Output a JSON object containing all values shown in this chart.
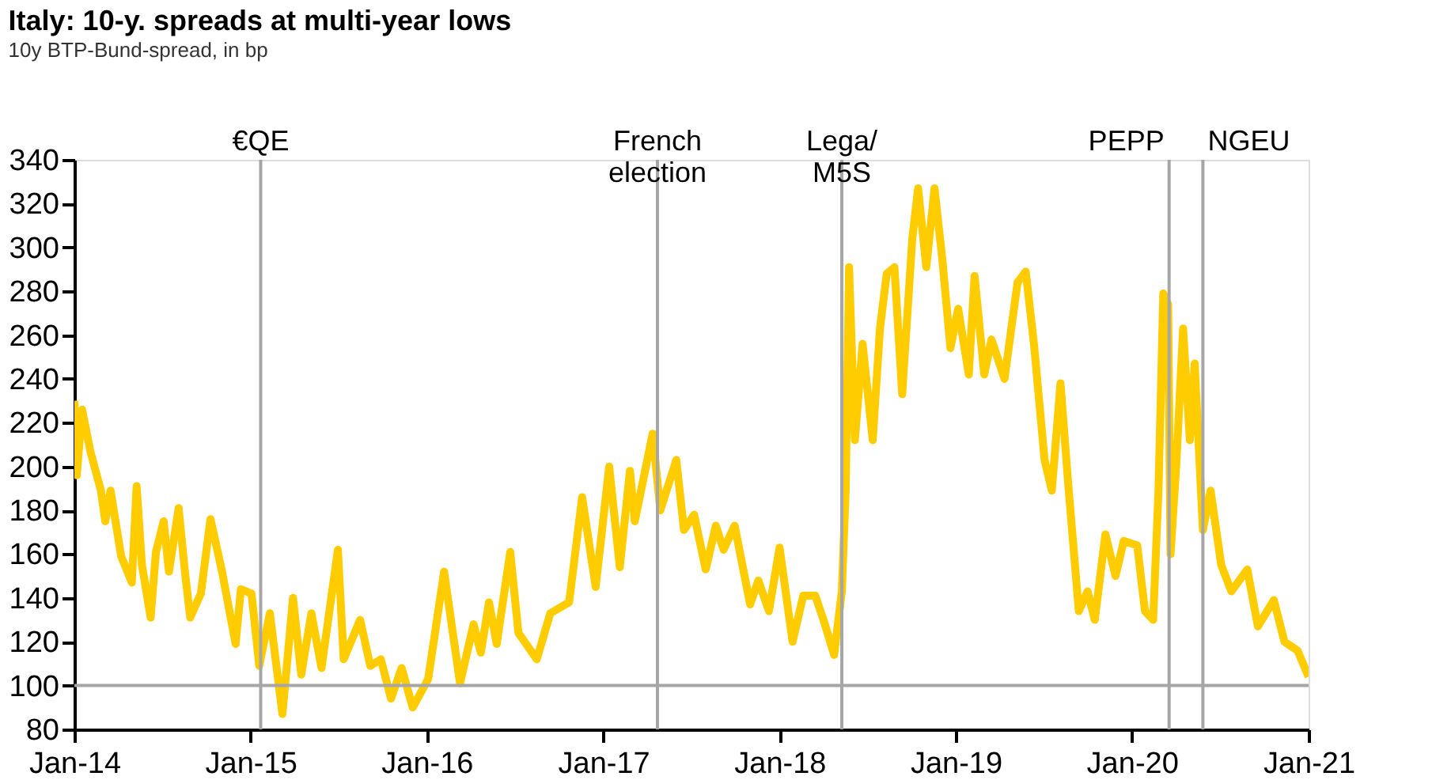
{
  "chart_data": {
    "type": "line",
    "title": "Italy: 10-y. spreads at multi-year lows",
    "subtitle": "10y BTP-Bund-spread, in bp",
    "xlim": [
      "2014-01-01",
      "2021-01-01"
    ],
    "xticks": [
      {
        "value": "2014-01-01",
        "label": "Jan-14"
      },
      {
        "value": "2015-01-01",
        "label": "Jan-15"
      },
      {
        "value": "2016-01-01",
        "label": "Jan-16"
      },
      {
        "value": "2017-01-01",
        "label": "Jan-17"
      },
      {
        "value": "2018-01-01",
        "label": "Jan-18"
      },
      {
        "value": "2019-01-01",
        "label": "Jan-19"
      },
      {
        "value": "2020-01-01",
        "label": "Jan-20"
      },
      {
        "value": "2021-01-01",
        "label": "Jan-21"
      }
    ],
    "ylim": [
      80,
      340
    ],
    "yticks": [
      80,
      100,
      120,
      140,
      160,
      180,
      200,
      220,
      240,
      260,
      280,
      300,
      320,
      340
    ],
    "grid": false,
    "marker": "none",
    "line_style": "solid",
    "x": [
      "2014-01-01",
      "2014-01-06",
      "2014-01-17",
      "2014-02-03",
      "2014-02-25",
      "2014-03-06",
      "2014-03-17",
      "2014-04-08",
      "2014-04-30",
      "2014-05-10",
      "2014-05-21",
      "2014-06-08",
      "2014-06-19",
      "2014-07-05",
      "2014-07-16",
      "2014-08-05",
      "2014-08-18",
      "2014-08-29",
      "2014-09-20",
      "2014-10-10",
      "2014-11-03",
      "2014-12-01",
      "2014-12-12",
      "2015-01-03",
      "2015-01-19",
      "2015-02-10",
      "2015-03-08",
      "2015-03-30",
      "2015-04-16",
      "2015-05-07",
      "2015-05-28",
      "2015-07-01",
      "2015-07-13",
      "2015-08-16",
      "2015-09-06",
      "2015-09-28",
      "2015-10-19",
      "2015-11-10",
      "2015-12-03",
      "2016-01-04",
      "2016-02-06",
      "2016-03-10",
      "2016-04-07",
      "2016-04-22",
      "2016-05-09",
      "2016-05-25",
      "2016-06-22",
      "2016-07-09",
      "2016-08-16",
      "2016-09-13",
      "2016-10-22",
      "2016-11-18",
      "2016-12-16",
      "2017-01-13",
      "2017-02-04",
      "2017-02-25",
      "2017-03-07",
      "2017-04-13",
      "2017-04-29",
      "2017-06-01",
      "2017-06-17",
      "2017-07-08",
      "2017-08-01",
      "2017-08-22",
      "2017-09-07",
      "2017-09-30",
      "2017-11-01",
      "2017-11-18",
      "2017-12-10",
      "2018-01-01",
      "2018-01-28",
      "2018-02-19",
      "2018-03-16",
      "2018-04-02",
      "2018-04-24",
      "2018-05-10",
      "2018-05-18",
      "2018-05-25",
      "2018-06-06",
      "2018-06-22",
      "2018-07-13",
      "2018-07-28",
      "2018-08-11",
      "2018-08-27",
      "2018-09-12",
      "2018-10-03",
      "2018-10-15",
      "2018-11-01",
      "2018-11-18",
      "2018-12-04",
      "2018-12-21",
      "2019-01-06",
      "2019-01-28",
      "2019-02-09",
      "2019-03-01",
      "2019-03-16",
      "2019-04-12",
      "2019-05-09",
      "2019-05-26",
      "2019-06-12",
      "2019-07-04",
      "2019-07-19",
      "2019-08-06",
      "2019-08-22",
      "2019-09-13",
      "2019-10-01",
      "2019-10-16",
      "2019-11-07",
      "2019-11-28",
      "2019-12-15",
      "2020-01-12",
      "2020-01-28",
      "2020-02-14",
      "2020-02-25",
      "2020-03-06",
      "2020-03-16",
      "2020-03-21",
      "2020-04-02",
      "2020-04-16",
      "2020-04-30",
      "2020-05-10",
      "2020-05-27",
      "2020-06-12",
      "2020-07-04",
      "2020-07-25",
      "2020-08-27",
      "2020-09-18",
      "2020-10-21",
      "2020-11-12",
      "2020-12-09",
      "2021-01-01"
    ],
    "series": [
      {
        "color": "#ffcc00",
        "values": [
          230,
          196,
          226,
          207,
          189,
          175,
          189,
          159,
          147,
          191,
          155,
          131,
          161,
          175,
          152,
          181,
          152,
          131,
          142,
          176,
          152,
          119,
          144,
          142,
          109,
          133,
          87,
          140,
          105,
          133,
          108,
          162,
          112,
          130,
          109,
          112,
          94,
          108,
          90,
          103,
          152,
          101,
          128,
          115,
          138,
          119,
          161,
          124,
          112,
          133,
          138,
          186,
          145,
          200,
          154,
          198,
          175,
          215,
          180,
          203,
          171,
          178,
          153,
          173,
          162,
          173,
          137,
          148,
          134,
          163,
          120,
          141,
          141,
          130,
          114,
          143,
          189,
          291,
          212,
          256,
          212,
          263,
          288,
          291,
          233,
          304,
          327,
          291,
          327,
          295,
          254,
          272,
          242,
          287,
          242,
          258,
          240,
          284,
          289,
          256,
          203,
          189,
          238,
          192,
          134,
          143,
          130,
          169,
          150,
          166,
          164,
          134,
          130,
          189,
          279,
          274,
          160,
          201,
          263,
          212,
          247,
          171,
          189,
          155,
          143,
          153,
          127,
          139,
          120,
          116,
          104
        ]
      }
    ],
    "ref_lines": [
      {
        "axis": "x",
        "value": "2015-01-22",
        "label": "€QE",
        "color": "#a6a6a6"
      },
      {
        "axis": "x",
        "value": "2017-04-23",
        "label": "French\nelection",
        "color": "#a6a6a6"
      },
      {
        "axis": "x",
        "value": "2018-05-10",
        "label": "Lega/\nM5S",
        "color": "#a6a6a6"
      },
      {
        "axis": "x",
        "value": "2020-03-18",
        "label": "PEPP",
        "color": "#a6a6a6"
      },
      {
        "axis": "x",
        "value": "2020-05-27",
        "label": "NGEU",
        "color": "#a6a6a6"
      },
      {
        "axis": "y",
        "value": 100,
        "color": "#a6a6a6"
      }
    ]
  }
}
